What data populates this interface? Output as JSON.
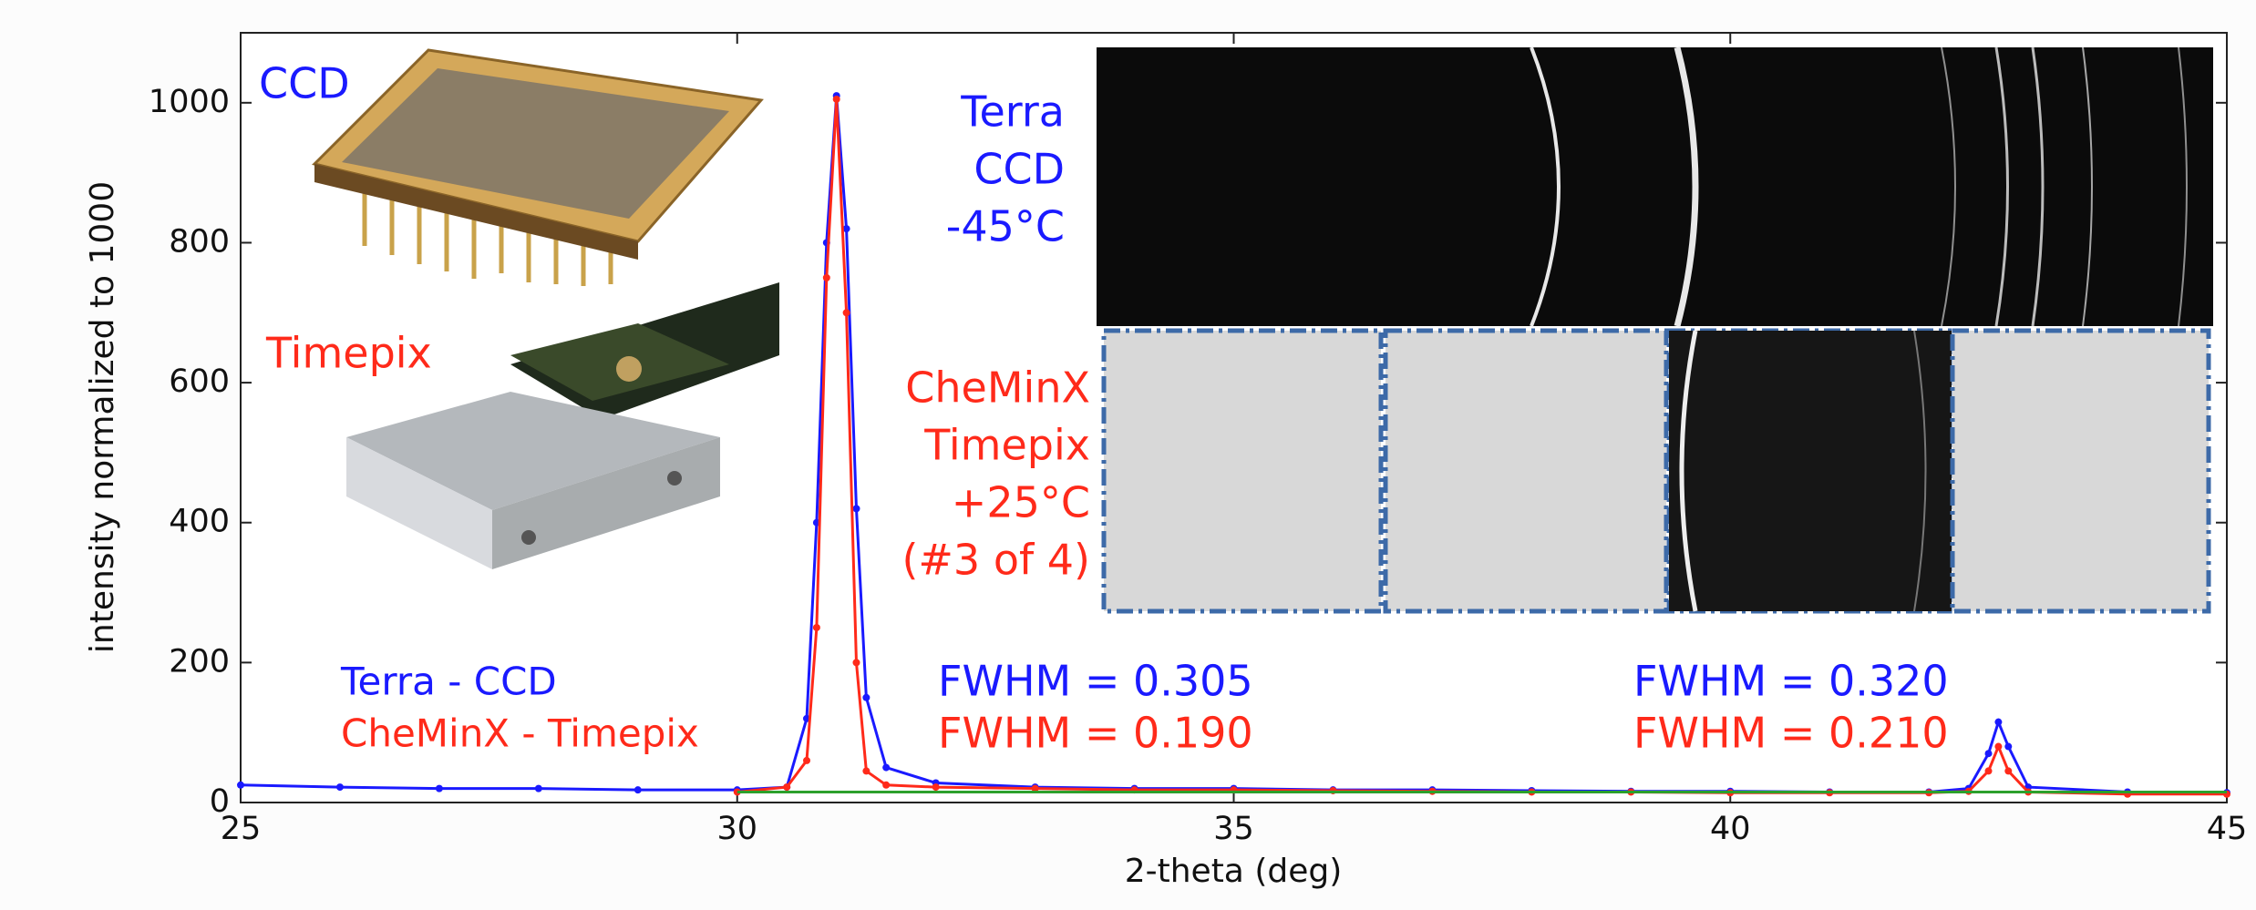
{
  "chart_data": {
    "type": "line",
    "xlabel": "2-theta (deg)",
    "ylabel": "intensity normalized to 1000",
    "xlim": [
      25,
      45
    ],
    "ylim": [
      0,
      1100
    ],
    "xticks": [
      25,
      30,
      35,
      40,
      45
    ],
    "yticks": [
      0,
      200,
      400,
      600,
      800,
      1000
    ],
    "series": [
      {
        "name": "Terra - CCD",
        "color": "#1a1aff",
        "x": [
          25,
          26,
          27,
          28,
          29,
          30,
          30.5,
          30.7,
          30.8,
          30.9,
          31.0,
          31.1,
          31.2,
          31.3,
          31.5,
          32,
          33,
          34,
          35,
          36,
          37,
          38,
          39,
          40,
          41,
          42,
          42.4,
          42.6,
          42.7,
          42.8,
          43,
          44,
          45
        ],
        "values": [
          25,
          22,
          20,
          20,
          18,
          18,
          22,
          120,
          400,
          800,
          1010,
          820,
          420,
          150,
          50,
          28,
          22,
          20,
          20,
          18,
          18,
          17,
          16,
          16,
          15,
          15,
          20,
          70,
          115,
          80,
          22,
          15,
          14
        ]
      },
      {
        "name": "CheMinX - Timepix",
        "color": "#ff2a1a",
        "x": [
          30,
          30.5,
          30.7,
          30.8,
          30.9,
          31.0,
          31.1,
          31.2,
          31.3,
          31.5,
          32,
          33,
          34,
          35,
          36,
          37,
          38,
          39,
          40,
          41,
          42,
          42.4,
          42.6,
          42.7,
          42.8,
          43,
          44,
          45
        ],
        "values": [
          15,
          22,
          60,
          250,
          750,
          1005,
          700,
          200,
          45,
          25,
          22,
          20,
          18,
          18,
          17,
          16,
          15,
          15,
          14,
          14,
          14,
          16,
          45,
          80,
          45,
          15,
          12,
          12
        ]
      },
      {
        "color": "#2ca02c",
        "x": [
          30,
          45
        ],
        "values": [
          15,
          15
        ]
      }
    ],
    "annotations": [
      {
        "lines": [
          "CCD"
        ],
        "color": "#1a1aff"
      },
      {
        "lines": [
          "Timepix"
        ],
        "color": "#ff2a1a"
      },
      {
        "lines": [
          "Terra",
          "CCD",
          "-45°C"
        ],
        "color": "#1a1aff"
      },
      {
        "lines": [
          "CheMinX",
          "Timepix",
          "+25°C",
          "(#3 of 4)"
        ],
        "color": "#ff2a1a"
      },
      {
        "lines": [
          "FWHM = 0.305"
        ],
        "color": "#1a1aff"
      },
      {
        "lines": [
          "FWHM = 0.190"
        ],
        "color": "#ff2a1a"
      },
      {
        "lines": [
          "FWHM = 0.320"
        ],
        "color": "#1a1aff"
      },
      {
        "lines": [
          "FWHM = 0.210"
        ],
        "color": "#ff2a1a"
      }
    ]
  }
}
